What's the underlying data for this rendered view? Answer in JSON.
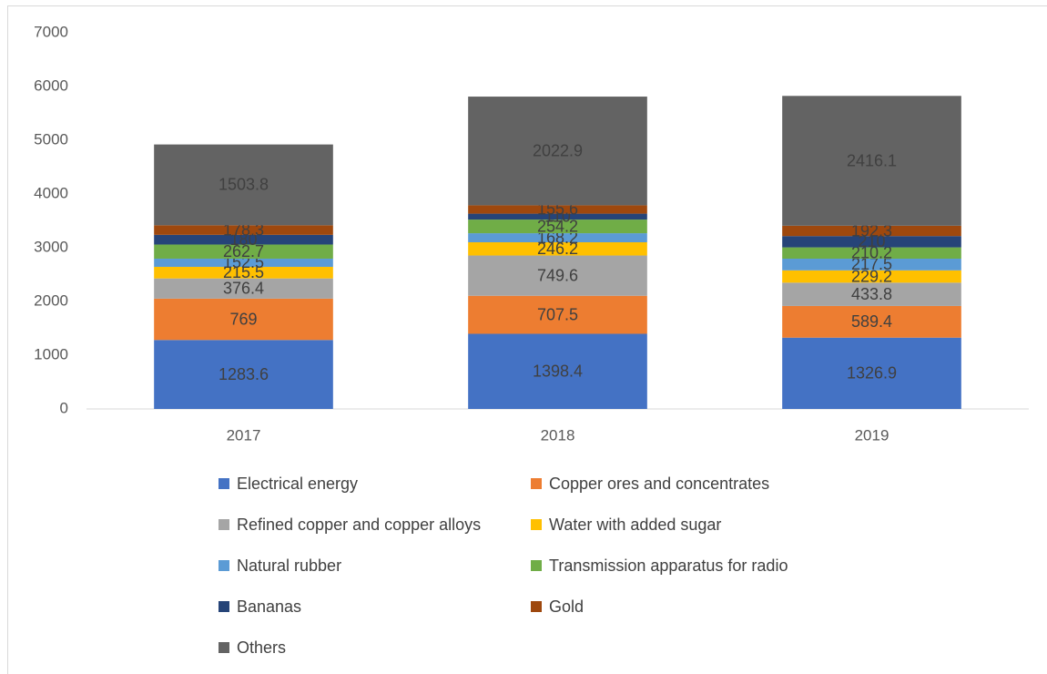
{
  "chart_data": {
    "type": "stacked_bar",
    "categories": [
      "2017",
      "2018",
      "2019"
    ],
    "series": [
      {
        "name": "Electrical energy",
        "color": "#4472c4",
        "values": [
          1283.6,
          1398.4,
          1326.9
        ]
      },
      {
        "name": "Copper ores and concentrates",
        "color": "#ed7d31",
        "values": [
          769,
          707.5,
          589.4
        ]
      },
      {
        "name": "Refined copper and copper alloys",
        "color": "#a5a5a5",
        "values": [
          376.4,
          749.6,
          433.8
        ]
      },
      {
        "name": "Water with added sugar",
        "color": "#ffc000",
        "values": [
          215.5,
          246.2,
          229.2
        ]
      },
      {
        "name": "Natural rubber",
        "color": "#5b9bd5",
        "values": [
          152.5,
          168.2,
          217.5
        ]
      },
      {
        "name": "Transmission apparatus for radio",
        "color": "#70ad47",
        "values": [
          262.7,
          254.2,
          210.2
        ]
      },
      {
        "name": "Bananas",
        "color": "#264478",
        "values": [
          180,
          110,
          210
        ]
      },
      {
        "name": "Gold",
        "color": "#9e480e",
        "values": [
          178.3,
          155.6,
          192.3
        ]
      },
      {
        "name": "Others",
        "color": "#636363",
        "values": [
          1503.8,
          2022.9,
          2416.1
        ]
      }
    ],
    "ylim": [
      0,
      7000
    ],
    "yticks": [
      0,
      1000,
      2000,
      3000,
      4000,
      5000,
      6000,
      7000
    ],
    "legend": "bottom"
  }
}
